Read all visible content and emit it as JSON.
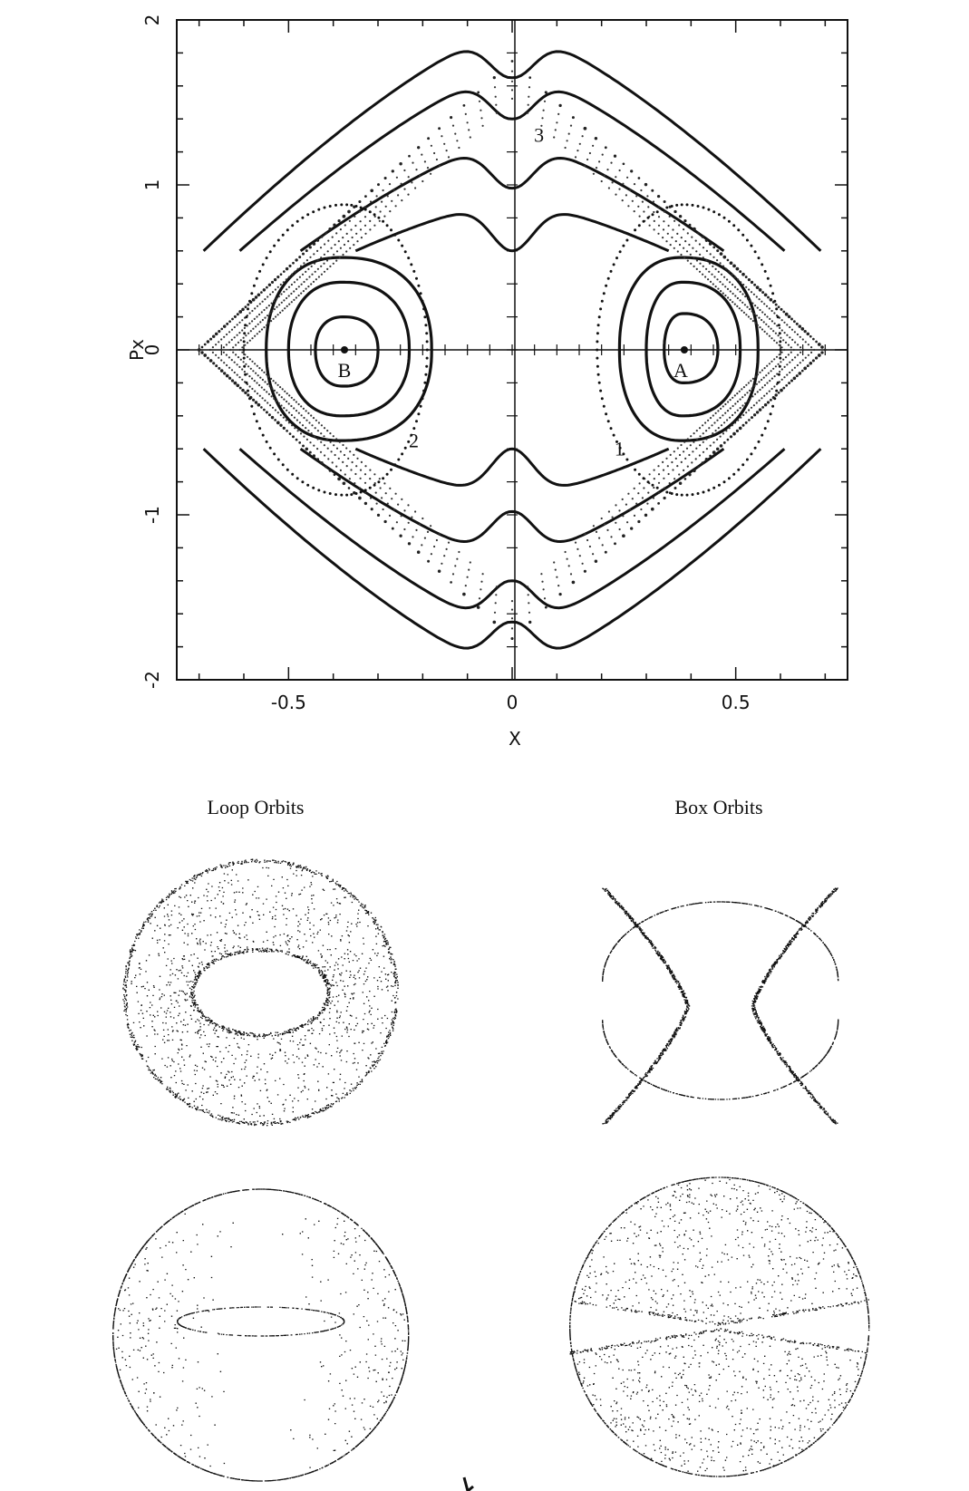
{
  "chart_data": {
    "type": "scatter",
    "title": "",
    "xlabel": "X",
    "ylabel": "Px",
    "xlim": [
      -0.75,
      0.75
    ],
    "ylim": [
      -2,
      2
    ],
    "grid": false,
    "x_ticks": [
      -0.5,
      0,
      0.5
    ],
    "x_tick_labels": [
      "-0.5",
      "0",
      "0.5"
    ],
    "y_ticks": [
      -2,
      -1,
      0,
      1,
      2
    ],
    "y_tick_labels": [
      "-2",
      "-1",
      "0",
      "1",
      "2"
    ],
    "fixed_points": [
      {
        "label": "A",
        "x": 0.385,
        "y": 0
      },
      {
        "label": "B",
        "x": -0.375,
        "y": 0
      }
    ],
    "loop_curves_around_A": [
      {
        "cx": 0.385,
        "xmin": 0.34,
        "xmax": 0.46,
        "ytop": 0.22,
        "ybot": -0.2
      },
      {
        "cx": 0.385,
        "xmin": 0.3,
        "xmax": 0.51,
        "ytop": 0.41,
        "ybot": -0.4
      },
      {
        "cx": 0.385,
        "xmin": 0.24,
        "xmax": 0.55,
        "ytop": 0.56,
        "ybot": -0.55
      }
    ],
    "loop_curves_around_B": [
      {
        "cx": -0.375,
        "xmin": -0.44,
        "xmax": -0.3,
        "ytop": 0.2,
        "ybot": -0.22
      },
      {
        "cx": -0.375,
        "xmin": -0.5,
        "xmax": -0.23,
        "ytop": 0.41,
        "ybot": -0.4
      },
      {
        "cx": -0.375,
        "xmin": -0.55,
        "xmax": -0.18,
        "ytop": 0.56,
        "ybot": -0.55
      }
    ],
    "box_curves_center_y": [
      0.6,
      0.98,
      1.4,
      1.65
    ],
    "curve_labels": [
      {
        "text": "1",
        "x": 0.24,
        "y": -0.64
      },
      {
        "text": "2",
        "x": -0.22,
        "y": -0.59
      },
      {
        "text": "3",
        "x": 0.06,
        "y": 1.26
      }
    ]
  },
  "panels": {
    "loop_title": "Loop Orbits",
    "box_title": "Box Orbits"
  }
}
